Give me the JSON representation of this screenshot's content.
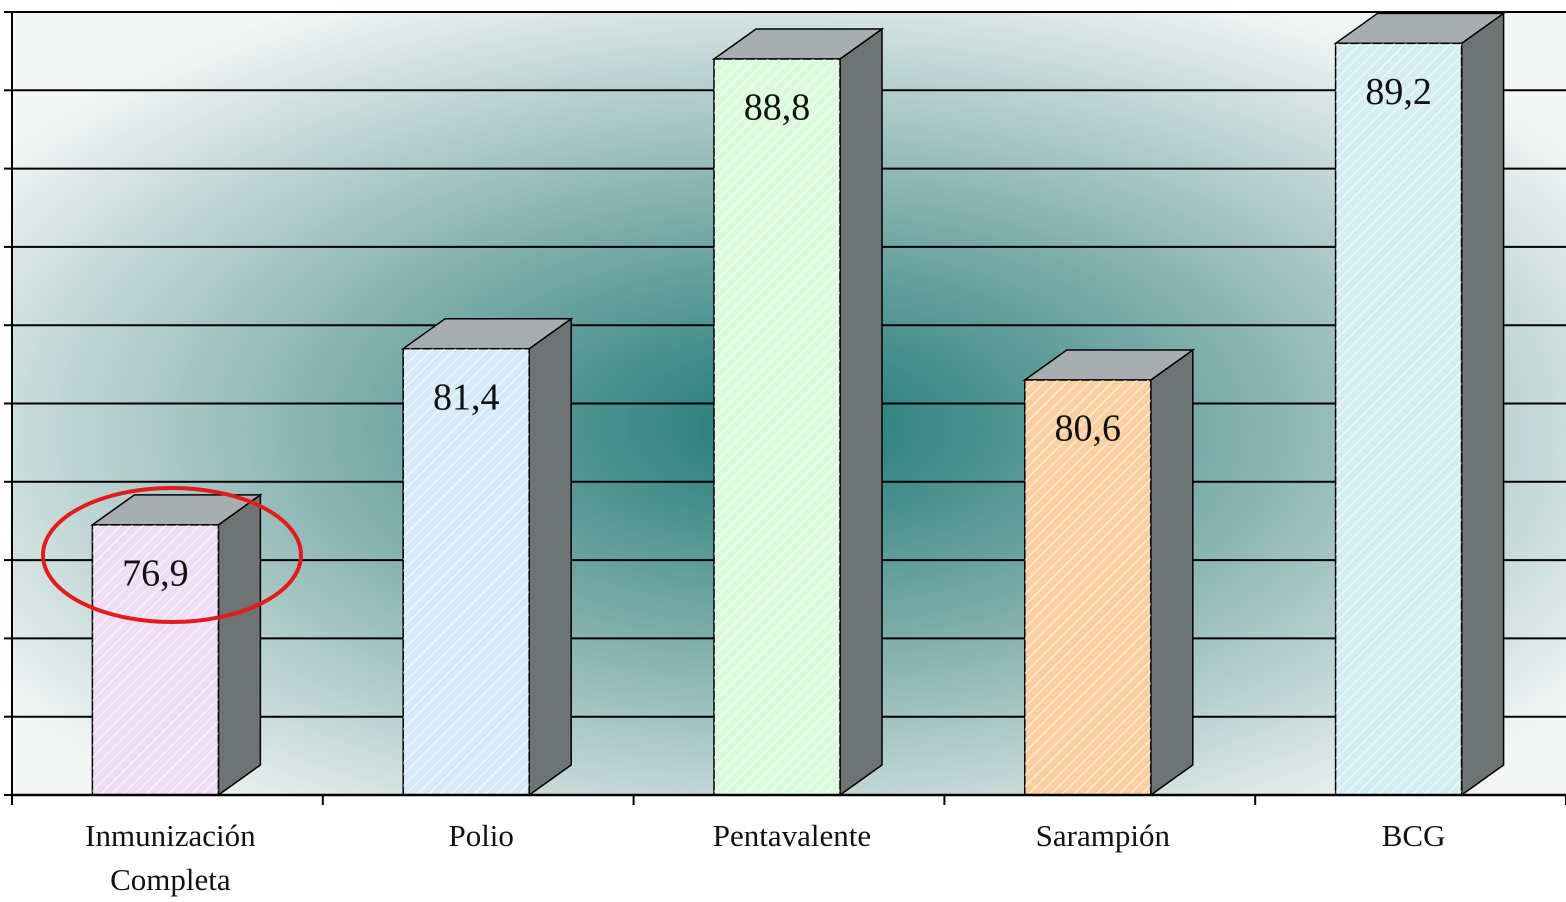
{
  "chart_data": {
    "type": "bar3d",
    "categories": [
      "Inmunización Completa",
      "Polio",
      "Pentavalente",
      "Sarampión",
      "BCG"
    ],
    "values": [
      76.9,
      81.4,
      88.8,
      80.6,
      89.2
    ],
    "value_labels": [
      "76,9",
      "81,4",
      "88,8",
      "80,6",
      "89,2"
    ],
    "colors": [
      "#ecdcf4",
      "#d6eafa",
      "#dcfadc",
      "#fbcf9f",
      "#d4eef4"
    ],
    "ylim": [
      70,
      90
    ],
    "yticks": [
      70,
      72,
      74,
      76,
      78,
      80,
      82,
      84,
      86,
      88,
      90
    ],
    "grid": true
  }
}
